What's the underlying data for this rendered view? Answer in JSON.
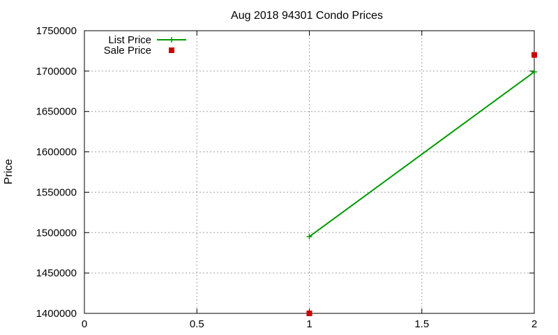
{
  "chart_data": {
    "type": "line",
    "title": "Aug 2018 94301 Condo Prices",
    "xlabel": "",
    "ylabel": "Price",
    "xlim": [
      0,
      2
    ],
    "ylim": [
      1400000,
      1750000
    ],
    "x_ticks": [
      0,
      0.5,
      1,
      1.5,
      2
    ],
    "x_tick_labels": [
      "0",
      "0.5",
      "1",
      "1.5",
      "2"
    ],
    "y_ticks": [
      1400000,
      1450000,
      1500000,
      1550000,
      1600000,
      1650000,
      1700000,
      1750000
    ],
    "y_tick_labels": [
      "1400000",
      "1450000",
      "1500000",
      "1550000",
      "1600000",
      "1650000",
      "1700000",
      "1750000"
    ],
    "grid": true,
    "legend_position": "top-left",
    "series": [
      {
        "name": "List Price",
        "style": "line-plus",
        "color": "#009900",
        "x": [
          1,
          2
        ],
        "y": [
          1495000,
          1699000
        ]
      },
      {
        "name": "Sale Price",
        "style": "square-points",
        "color": "#cc0000",
        "x": [
          1,
          2
        ],
        "y": [
          1400000,
          1720000
        ]
      }
    ]
  }
}
